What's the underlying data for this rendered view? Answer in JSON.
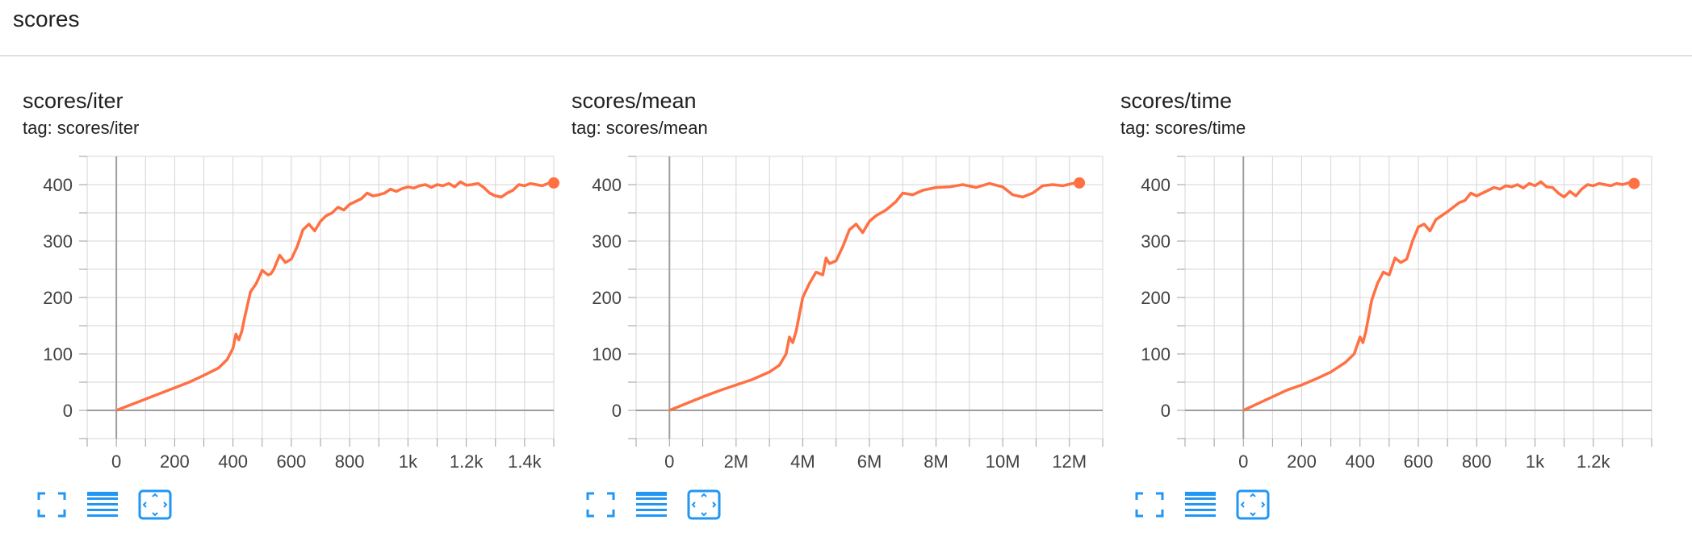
{
  "section": {
    "title": "scores"
  },
  "colors": {
    "line": "#ff7043",
    "grid": "#d4d4d4",
    "axis": "#9e9e9e",
    "tick_text": "#424242",
    "icon": "#2196f3"
  },
  "icons": [
    "fullscreen-icon",
    "toggle-log-scale-icon",
    "fit-domain-icon"
  ],
  "chart_data": [
    {
      "type": "line",
      "title": "scores/iter",
      "tag": "tag: scores/iter",
      "xlabel": "",
      "ylabel": "",
      "xlim": [
        -100,
        1500
      ],
      "ylim": [
        -50,
        450
      ],
      "x_ticks": [
        0,
        200,
        400,
        600,
        800,
        1000,
        1200,
        1400
      ],
      "x_tick_labels": [
        "0",
        "200",
        "400",
        "600",
        "800",
        "1k",
        "1.2k",
        "1.4k"
      ],
      "y_ticks": [
        0,
        100,
        200,
        300,
        400
      ],
      "y_tick_labels": [
        "0",
        "100",
        "200",
        "300",
        "400"
      ],
      "grid": true,
      "series": [
        {
          "x": [
            0,
            50,
            100,
            150,
            200,
            250,
            300,
            350,
            380,
            400,
            410,
            420,
            430,
            440,
            460,
            480,
            500,
            520,
            530,
            540,
            560,
            580,
            600,
            620,
            640,
            660,
            680,
            700,
            720,
            740,
            760,
            780,
            800,
            820,
            840,
            860,
            880,
            900,
            920,
            940,
            960,
            980,
            1000,
            1020,
            1040,
            1060,
            1080,
            1100,
            1120,
            1140,
            1160,
            1180,
            1200,
            1220,
            1240,
            1260,
            1280,
            1300,
            1320,
            1340,
            1360,
            1380,
            1400,
            1420,
            1440,
            1460,
            1480,
            1500
          ],
          "y": [
            0,
            10,
            20,
            30,
            40,
            50,
            62,
            75,
            90,
            110,
            135,
            125,
            140,
            165,
            210,
            225,
            248,
            240,
            242,
            250,
            275,
            262,
            268,
            290,
            320,
            330,
            318,
            335,
            345,
            350,
            360,
            355,
            365,
            370,
            375,
            385,
            380,
            382,
            385,
            392,
            388,
            393,
            396,
            394,
            398,
            400,
            395,
            400,
            398,
            402,
            396,
            405,
            399,
            400,
            402,
            395,
            385,
            380,
            378,
            385,
            390,
            400,
            398,
            402,
            400,
            398,
            402,
            403
          ]
        }
      ]
    },
    {
      "type": "line",
      "title": "scores/mean",
      "tag": "tag: scores/mean",
      "xlabel": "",
      "ylabel": "",
      "xlim": [
        -1000000,
        13000000
      ],
      "ylim": [
        -50,
        450
      ],
      "x_ticks": [
        0,
        2000000,
        4000000,
        6000000,
        8000000,
        10000000,
        12000000
      ],
      "x_tick_labels": [
        "0",
        "2M",
        "4M",
        "6M",
        "8M",
        "10M",
        "12M"
      ],
      "y_ticks": [
        0,
        100,
        200,
        300,
        400
      ],
      "y_tick_labels": [
        "0",
        "100",
        "200",
        "300",
        "400"
      ],
      "grid": true,
      "series": [
        {
          "x": [
            0,
            500000,
            1000000,
            1500000,
            2000000,
            2500000,
            3000000,
            3300000,
            3500000,
            3600000,
            3700000,
            3800000,
            4000000,
            4200000,
            4400000,
            4600000,
            4700000,
            4800000,
            5000000,
            5200000,
            5400000,
            5600000,
            5800000,
            6000000,
            6200000,
            6500000,
            6800000,
            7000000,
            7300000,
            7600000,
            8000000,
            8400000,
            8800000,
            9200000,
            9600000,
            10000000,
            10300000,
            10600000,
            10900000,
            11200000,
            11500000,
            11800000,
            12100000,
            12300000
          ],
          "y": [
            0,
            12,
            24,
            35,
            45,
            55,
            68,
            80,
            100,
            130,
            120,
            140,
            200,
            225,
            245,
            240,
            270,
            260,
            265,
            290,
            320,
            330,
            315,
            335,
            345,
            355,
            370,
            385,
            382,
            390,
            395,
            396,
            400,
            395,
            402,
            396,
            382,
            378,
            385,
            398,
            400,
            398,
            402,
            403
          ]
        }
      ]
    },
    {
      "type": "line",
      "title": "scores/time",
      "tag": "tag: scores/time",
      "xlabel": "",
      "ylabel": "",
      "xlim": [
        -200,
        1400
      ],
      "ylim": [
        -50,
        450
      ],
      "x_ticks": [
        0,
        200,
        400,
        600,
        800,
        1000,
        1200
      ],
      "x_tick_labels": [
        "0",
        "200",
        "400",
        "600",
        "800",
        "1k",
        "1.2k"
      ],
      "y_ticks": [
        0,
        100,
        200,
        300,
        400
      ],
      "y_tick_labels": [
        "0",
        "100",
        "200",
        "300",
        "400"
      ],
      "grid": true,
      "series": [
        {
          "x": [
            0,
            50,
            100,
            150,
            200,
            250,
            300,
            350,
            380,
            400,
            410,
            420,
            440,
            460,
            480,
            500,
            520,
            540,
            560,
            580,
            600,
            620,
            640,
            660,
            680,
            700,
            720,
            740,
            760,
            780,
            800,
            820,
            840,
            860,
            880,
            900,
            920,
            940,
            960,
            980,
            1000,
            1020,
            1040,
            1060,
            1080,
            1100,
            1120,
            1140,
            1160,
            1180,
            1200,
            1220,
            1240,
            1260,
            1280,
            1300,
            1320,
            1340
          ],
          "y": [
            0,
            12,
            24,
            36,
            45,
            56,
            68,
            85,
            100,
            130,
            120,
            140,
            195,
            225,
            245,
            240,
            270,
            262,
            268,
            300,
            325,
            330,
            318,
            338,
            345,
            352,
            360,
            368,
            372,
            385,
            380,
            385,
            390,
            395,
            392,
            398,
            396,
            400,
            394,
            402,
            398,
            405,
            396,
            395,
            385,
            378,
            388,
            380,
            392,
            400,
            398,
            402,
            400,
            398,
            402,
            400,
            403,
            402
          ]
        }
      ]
    }
  ]
}
